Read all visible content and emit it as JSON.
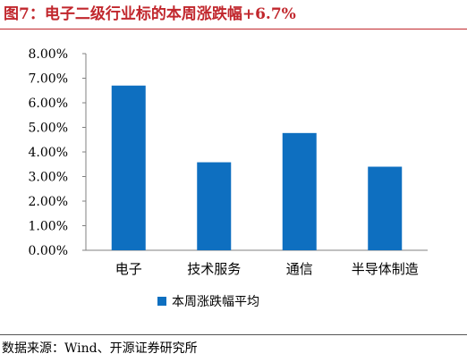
{
  "header": {
    "title": "图7：电子二级行业标的本周涨跌幅+6.7%"
  },
  "footer": {
    "source": "数据来源：Wind、开源证券研究所"
  },
  "colors": {
    "title": "#c1272d",
    "bar": "#0e6fc0"
  },
  "chart_data": {
    "type": "bar",
    "categories": [
      "电子",
      "技术服务",
      "通信",
      "半导体制造"
    ],
    "series": [
      {
        "name": "本周涨跌幅平均",
        "values": [
          6.7,
          3.58,
          4.77,
          3.4
        ]
      }
    ],
    "ylim": [
      0,
      8
    ],
    "yticks": [
      "0.00%",
      "1.00%",
      "2.00%",
      "3.00%",
      "4.00%",
      "5.00%",
      "6.00%",
      "7.00%",
      "8.00%"
    ],
    "grid": false,
    "legend": "bottom-center"
  }
}
